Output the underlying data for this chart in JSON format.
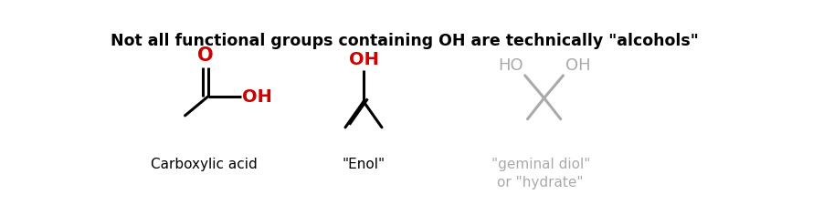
{
  "title": "Not all functional groups containing OH are technically \"alcohols\"",
  "title_fontsize": 12.5,
  "title_fontweight": "bold",
  "title_color": "#000000",
  "background_color": "#ffffff",
  "label1": "Carboxylic acid",
  "label2": "\"Enol\"",
  "label3": "\"geminal diol\"\nor \"hydrate\"",
  "label_color_1": "#000000",
  "label_color_2": "#000000",
  "label_color_3": "#aaaaaa",
  "oh_color": "#cc0000",
  "bond_color": "#000000",
  "gray_color": "#aaaaaa",
  "label_fontsize": 11,
  "lw": 2.2
}
